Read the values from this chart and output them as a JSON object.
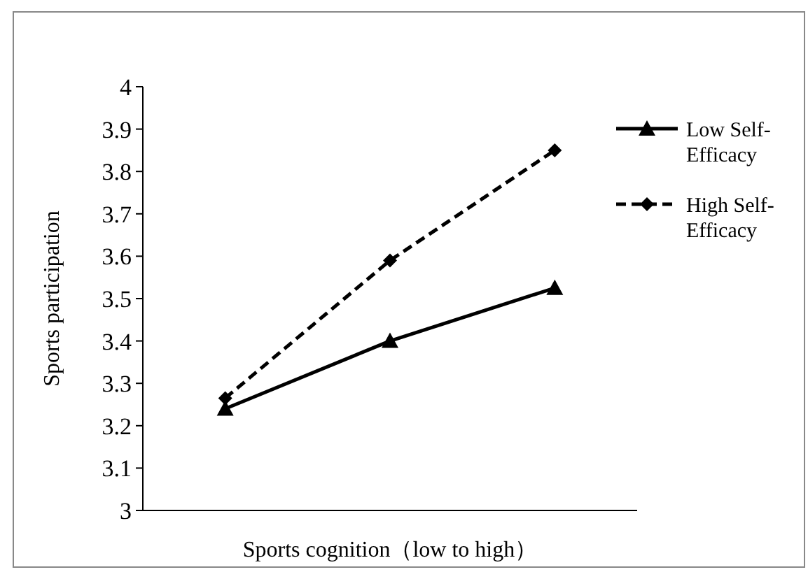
{
  "chart_data": {
    "type": "line",
    "xlabel": "Sports cognition（low to high）",
    "ylabel": "Sports participation",
    "categories": [
      null,
      null,
      null
    ],
    "series": [
      {
        "name": "Low Self-Efficacy",
        "color": "#000000",
        "values": [
          3.24,
          3.4,
          3.525
        ],
        "marker": "triangle",
        "line_style": "solid"
      },
      {
        "name": "High Self-Efficacy",
        "color": "#000000",
        "values": [
          3.265,
          3.59,
          3.85
        ],
        "marker": "diamond",
        "line_style": "dashed"
      }
    ],
    "ylim": [
      3,
      4
    ],
    "yticks": [
      3,
      3.1,
      3.2,
      3.3,
      3.4,
      3.5,
      3.6,
      3.7,
      3.8,
      3.9,
      4
    ],
    "grid": false,
    "legend": "top right"
  }
}
